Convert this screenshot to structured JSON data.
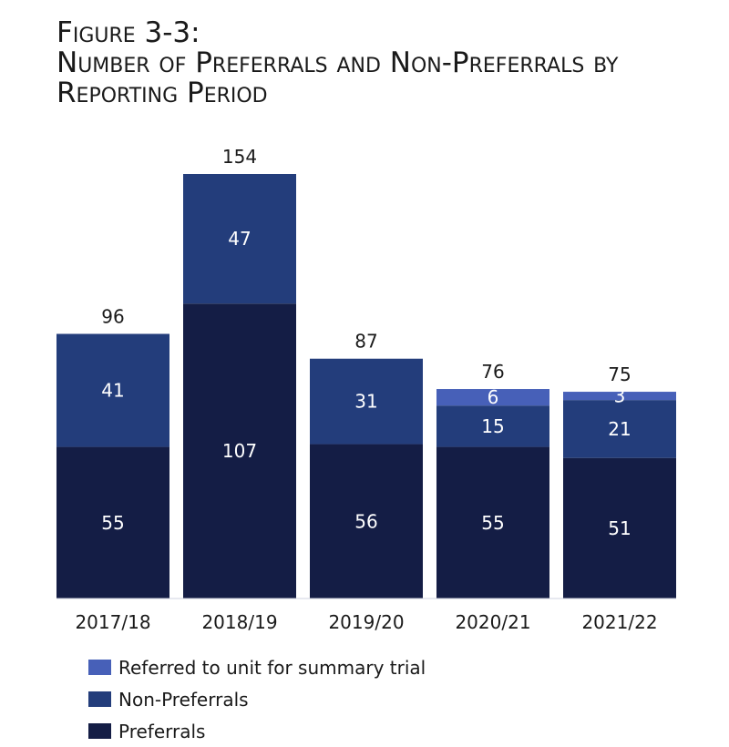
{
  "title": {
    "line1": "Figure 3-3:",
    "line2": "Number of Preferrals and Non-Preferrals by",
    "line3": "Reporting Period"
  },
  "chart_data": {
    "type": "bar",
    "stacked": true,
    "title": "Figure 3-3: Number of Preferrals and Non-Preferrals by Reporting Period",
    "xlabel": "",
    "ylabel": "",
    "categories": [
      "2017/18",
      "2018/19",
      "2019/20",
      "2020/21",
      "2021/22"
    ],
    "series": [
      {
        "name": "Preferrals",
        "color": "#141d45",
        "values": [
          55,
          107,
          56,
          55,
          51
        ]
      },
      {
        "name": "Non-Preferrals",
        "color": "#233d7b",
        "values": [
          41,
          47,
          31,
          15,
          21
        ]
      },
      {
        "name": "Referred to unit for summary trial",
        "color": "#4760b8",
        "values": [
          0,
          0,
          0,
          6,
          3
        ]
      }
    ],
    "totals": [
      96,
      154,
      87,
      76,
      75
    ],
    "ylim": [
      0,
      154
    ],
    "grid": false,
    "legend_position": "bottom-left"
  },
  "legend": {
    "items": [
      {
        "label": "Referred to unit for summary trial",
        "color": "#4760b8"
      },
      {
        "label": "Non-Preferrals",
        "color": "#233d7b"
      },
      {
        "label": "Preferrals",
        "color": "#141d45"
      }
    ]
  }
}
